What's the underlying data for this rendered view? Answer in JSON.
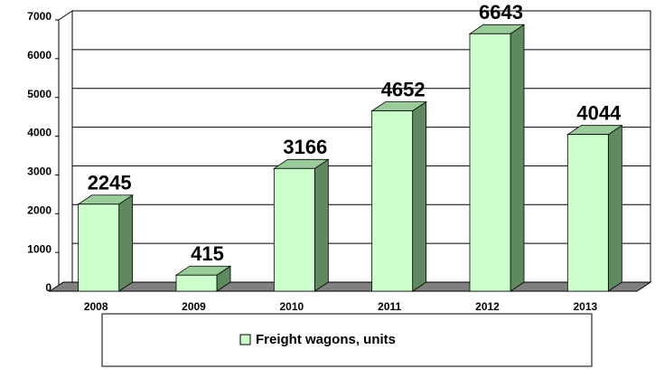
{
  "chart_data": {
    "type": "bar3d",
    "categories": [
      "2008",
      "2009",
      "2010",
      "2011",
      "2012",
      "2013"
    ],
    "series": [
      {
        "name": "Freight wagons, units",
        "color": "#ccffcc",
        "values": [
          2245,
          415,
          3166,
          4652,
          6643,
          4044
        ]
      }
    ],
    "ylim": [
      0,
      7000
    ],
    "yticks": [
      0,
      1000,
      2000,
      3000,
      4000,
      5000,
      6000,
      7000
    ],
    "grid": true,
    "legend": "bottom"
  }
}
